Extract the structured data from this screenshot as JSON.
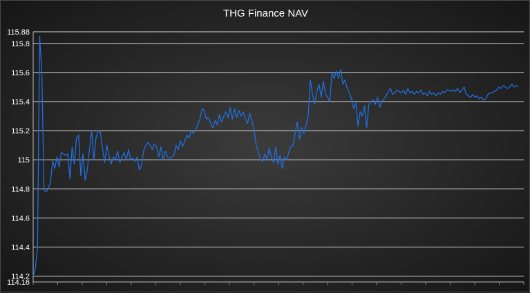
{
  "chart_data": {
    "type": "line",
    "title": "THG Finance NAV",
    "xlabel": "",
    "ylabel": "",
    "ylim": [
      114.16,
      115.88
    ],
    "y_ticks": [
      114.16,
      114.2,
      114.4,
      114.6,
      114.8,
      115,
      115.2,
      115.4,
      115.6,
      115.8,
      115.88
    ],
    "y_tick_labels": [
      "114.16",
      "114.2",
      "114.4",
      "114.6",
      "114.8",
      "115",
      "115.2",
      "115.4",
      "115.6",
      "115.8",
      "115.88"
    ],
    "x_tick_count": 21,
    "grid": "horizontal",
    "legend": "none",
    "colors": {
      "line": "#1f6fe0",
      "grid": "#d8d8d8",
      "text": "#ffffff"
    },
    "series": [
      {
        "values": [
          114.2,
          114.25,
          114.4,
          115.85,
          115.6,
          114.79,
          114.78,
          114.8,
          114.85,
          114.99,
          114.94,
          115.02,
          114.95,
          115.05,
          115.04,
          115.03,
          115.04,
          114.87,
          115.09,
          114.97,
          115.15,
          115.17,
          114.89,
          115.04,
          114.86,
          114.93,
          115.07,
          115.2,
          115.0,
          115.15,
          115.2,
          115.19,
          115.08,
          114.98,
          115.1,
          115.03,
          114.97,
          115.02,
          115.0,
          115.06,
          114.98,
          115.02,
          115.05,
          115.0,
          115.07,
          115.0,
          115.01,
          114.99,
          115.02,
          114.93,
          114.96,
          115.06,
          115.1,
          115.12,
          115.1,
          115.07,
          115.11,
          115.09,
          115.02,
          115.09,
          115.0,
          115.06,
          115.02,
          115.01,
          115.02,
          115.03,
          115.1,
          115.07,
          115.13,
          115.09,
          115.13,
          115.17,
          115.15,
          115.2,
          115.18,
          115.2,
          115.24,
          115.28,
          115.35,
          115.34,
          115.28,
          115.29,
          115.25,
          115.22,
          115.27,
          115.24,
          115.31,
          115.26,
          115.3,
          115.33,
          115.29,
          115.36,
          115.28,
          115.35,
          115.29,
          115.34,
          115.3,
          115.33,
          115.28,
          115.25,
          115.32,
          115.27,
          115.2,
          115.1,
          115.05,
          115.0,
          114.99,
          115.04,
          115.0,
          115.08,
          115.02,
          114.98,
          115.09,
          114.97,
          115.03,
          114.94,
          115.02,
          115.0,
          115.05,
          115.09,
          115.1,
          115.19,
          115.26,
          115.14,
          115.22,
          115.18,
          115.24,
          115.3,
          115.55,
          115.45,
          115.38,
          115.47,
          115.52,
          115.43,
          115.54,
          115.45,
          115.43,
          115.4,
          115.6,
          115.56,
          115.61,
          115.56,
          115.62,
          115.52,
          115.55,
          115.49,
          115.46,
          115.42,
          115.35,
          115.39,
          115.23,
          115.33,
          115.3,
          115.37,
          115.22,
          115.38,
          115.4,
          115.41,
          115.38,
          115.43,
          115.36,
          115.4,
          115.42,
          115.44,
          115.47,
          115.49,
          115.45,
          115.46,
          115.48,
          115.47,
          115.46,
          115.48,
          115.45,
          115.49,
          115.46,
          115.47,
          115.45,
          115.47,
          115.46,
          115.48,
          115.45,
          115.46,
          115.44,
          115.47,
          115.45,
          115.46,
          115.44,
          115.46,
          115.45,
          115.47,
          115.46,
          115.48,
          115.48,
          115.47,
          115.48,
          115.47,
          115.49,
          115.46,
          115.48,
          115.5,
          115.45,
          115.44,
          115.43,
          115.45,
          115.43,
          115.44,
          115.42,
          115.43,
          115.41,
          115.42,
          115.45,
          115.46,
          115.46,
          115.47,
          115.48,
          115.5,
          115.49,
          115.51,
          115.5,
          115.49,
          115.5,
          115.52,
          115.5,
          115.51,
          115.5
        ]
      }
    ]
  }
}
